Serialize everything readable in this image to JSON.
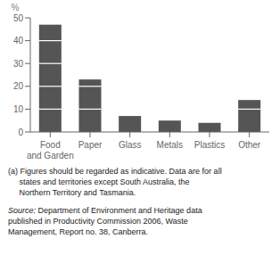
{
  "chart_data": {
    "type": "bar",
    "categories": [
      "Food\nand Garden",
      "Paper",
      "Glass",
      "Metals",
      "Plastics",
      "Other"
    ],
    "values": [
      47,
      23,
      7,
      5,
      4,
      14
    ],
    "color": "#555555",
    "ylim": [
      0,
      50
    ],
    "yticks": [
      0,
      10,
      20,
      30,
      40,
      50
    ],
    "ylabel": "%",
    "grid": false,
    "annotations": [
      "(a) Figures should be regarded as indicative. Data are for all",
      "     states and territories except South Australia, the",
      "     Northern Territory and Tasmania.",
      "Source: Department of Environment and Heritage data",
      "published in Productivity Commission 2006, Waste",
      "Management, Report no. 38, Canberra."
    ]
  }
}
